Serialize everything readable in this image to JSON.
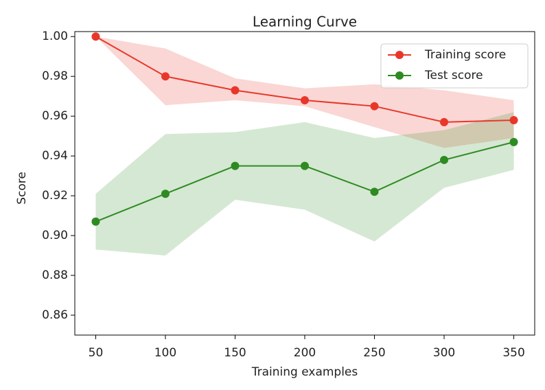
{
  "chart_data": {
    "type": "line",
    "title": "Learning Curve",
    "x_label": "Training examples",
    "y_label": "Score",
    "x": [
      50,
      100,
      150,
      200,
      250,
      300,
      350
    ],
    "series": [
      {
        "name": "Training score",
        "color": "#e8372a",
        "values": [
          1.0,
          0.98,
          0.973,
          0.968,
          0.965,
          0.957,
          0.958
        ],
        "upper": [
          1.0,
          0.994,
          0.979,
          0.974,
          0.976,
          0.973,
          0.968
        ],
        "lower": [
          1.0,
          0.9655,
          0.968,
          0.965,
          0.9545,
          0.944,
          0.949
        ]
      },
      {
        "name": "Test score",
        "color": "#2e8b22",
        "values": [
          0.907,
          0.921,
          0.935,
          0.935,
          0.922,
          0.938,
          0.947
        ],
        "upper": [
          0.921,
          0.951,
          0.952,
          0.957,
          0.949,
          0.953,
          0.962
        ],
        "lower": [
          0.893,
          0.89,
          0.918,
          0.913,
          0.897,
          0.924,
          0.933
        ]
      }
    ],
    "xlim": [
      35,
      365
    ],
    "ylim": [
      0.85,
      1.0025
    ],
    "xticks": [
      50,
      100,
      150,
      200,
      250,
      300,
      350
    ],
    "yticks": [
      {
        "value": 0.86,
        "label": "0.86"
      },
      {
        "value": 0.88,
        "label": "0.88"
      },
      {
        "value": 0.9,
        "label": "0.90"
      },
      {
        "value": 0.92,
        "label": "0.92"
      },
      {
        "value": 0.94,
        "label": "0.94"
      },
      {
        "value": 0.96,
        "label": "0.96"
      },
      {
        "value": 0.98,
        "label": "0.98"
      },
      {
        "value": 1.0,
        "label": "1.00"
      }
    ],
    "legend": "upper right",
    "grid": false
  }
}
